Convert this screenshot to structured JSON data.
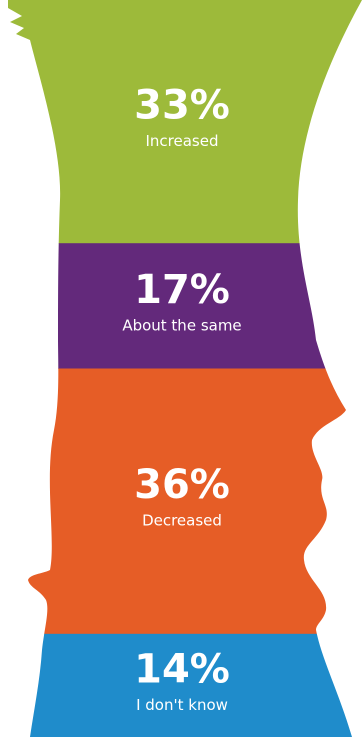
{
  "chart_data": {
    "type": "stacked-silhouette",
    "categories": [
      "Increased",
      "About the same",
      "Decreased",
      "I don't know"
    ],
    "values": [
      33,
      17,
      36,
      14
    ],
    "value_labels": [
      "33%",
      "17%",
      "36%",
      "14%"
    ],
    "colors": [
      "#9dba3a",
      "#63297b",
      "#e65d26",
      "#1f8ccb"
    ]
  }
}
